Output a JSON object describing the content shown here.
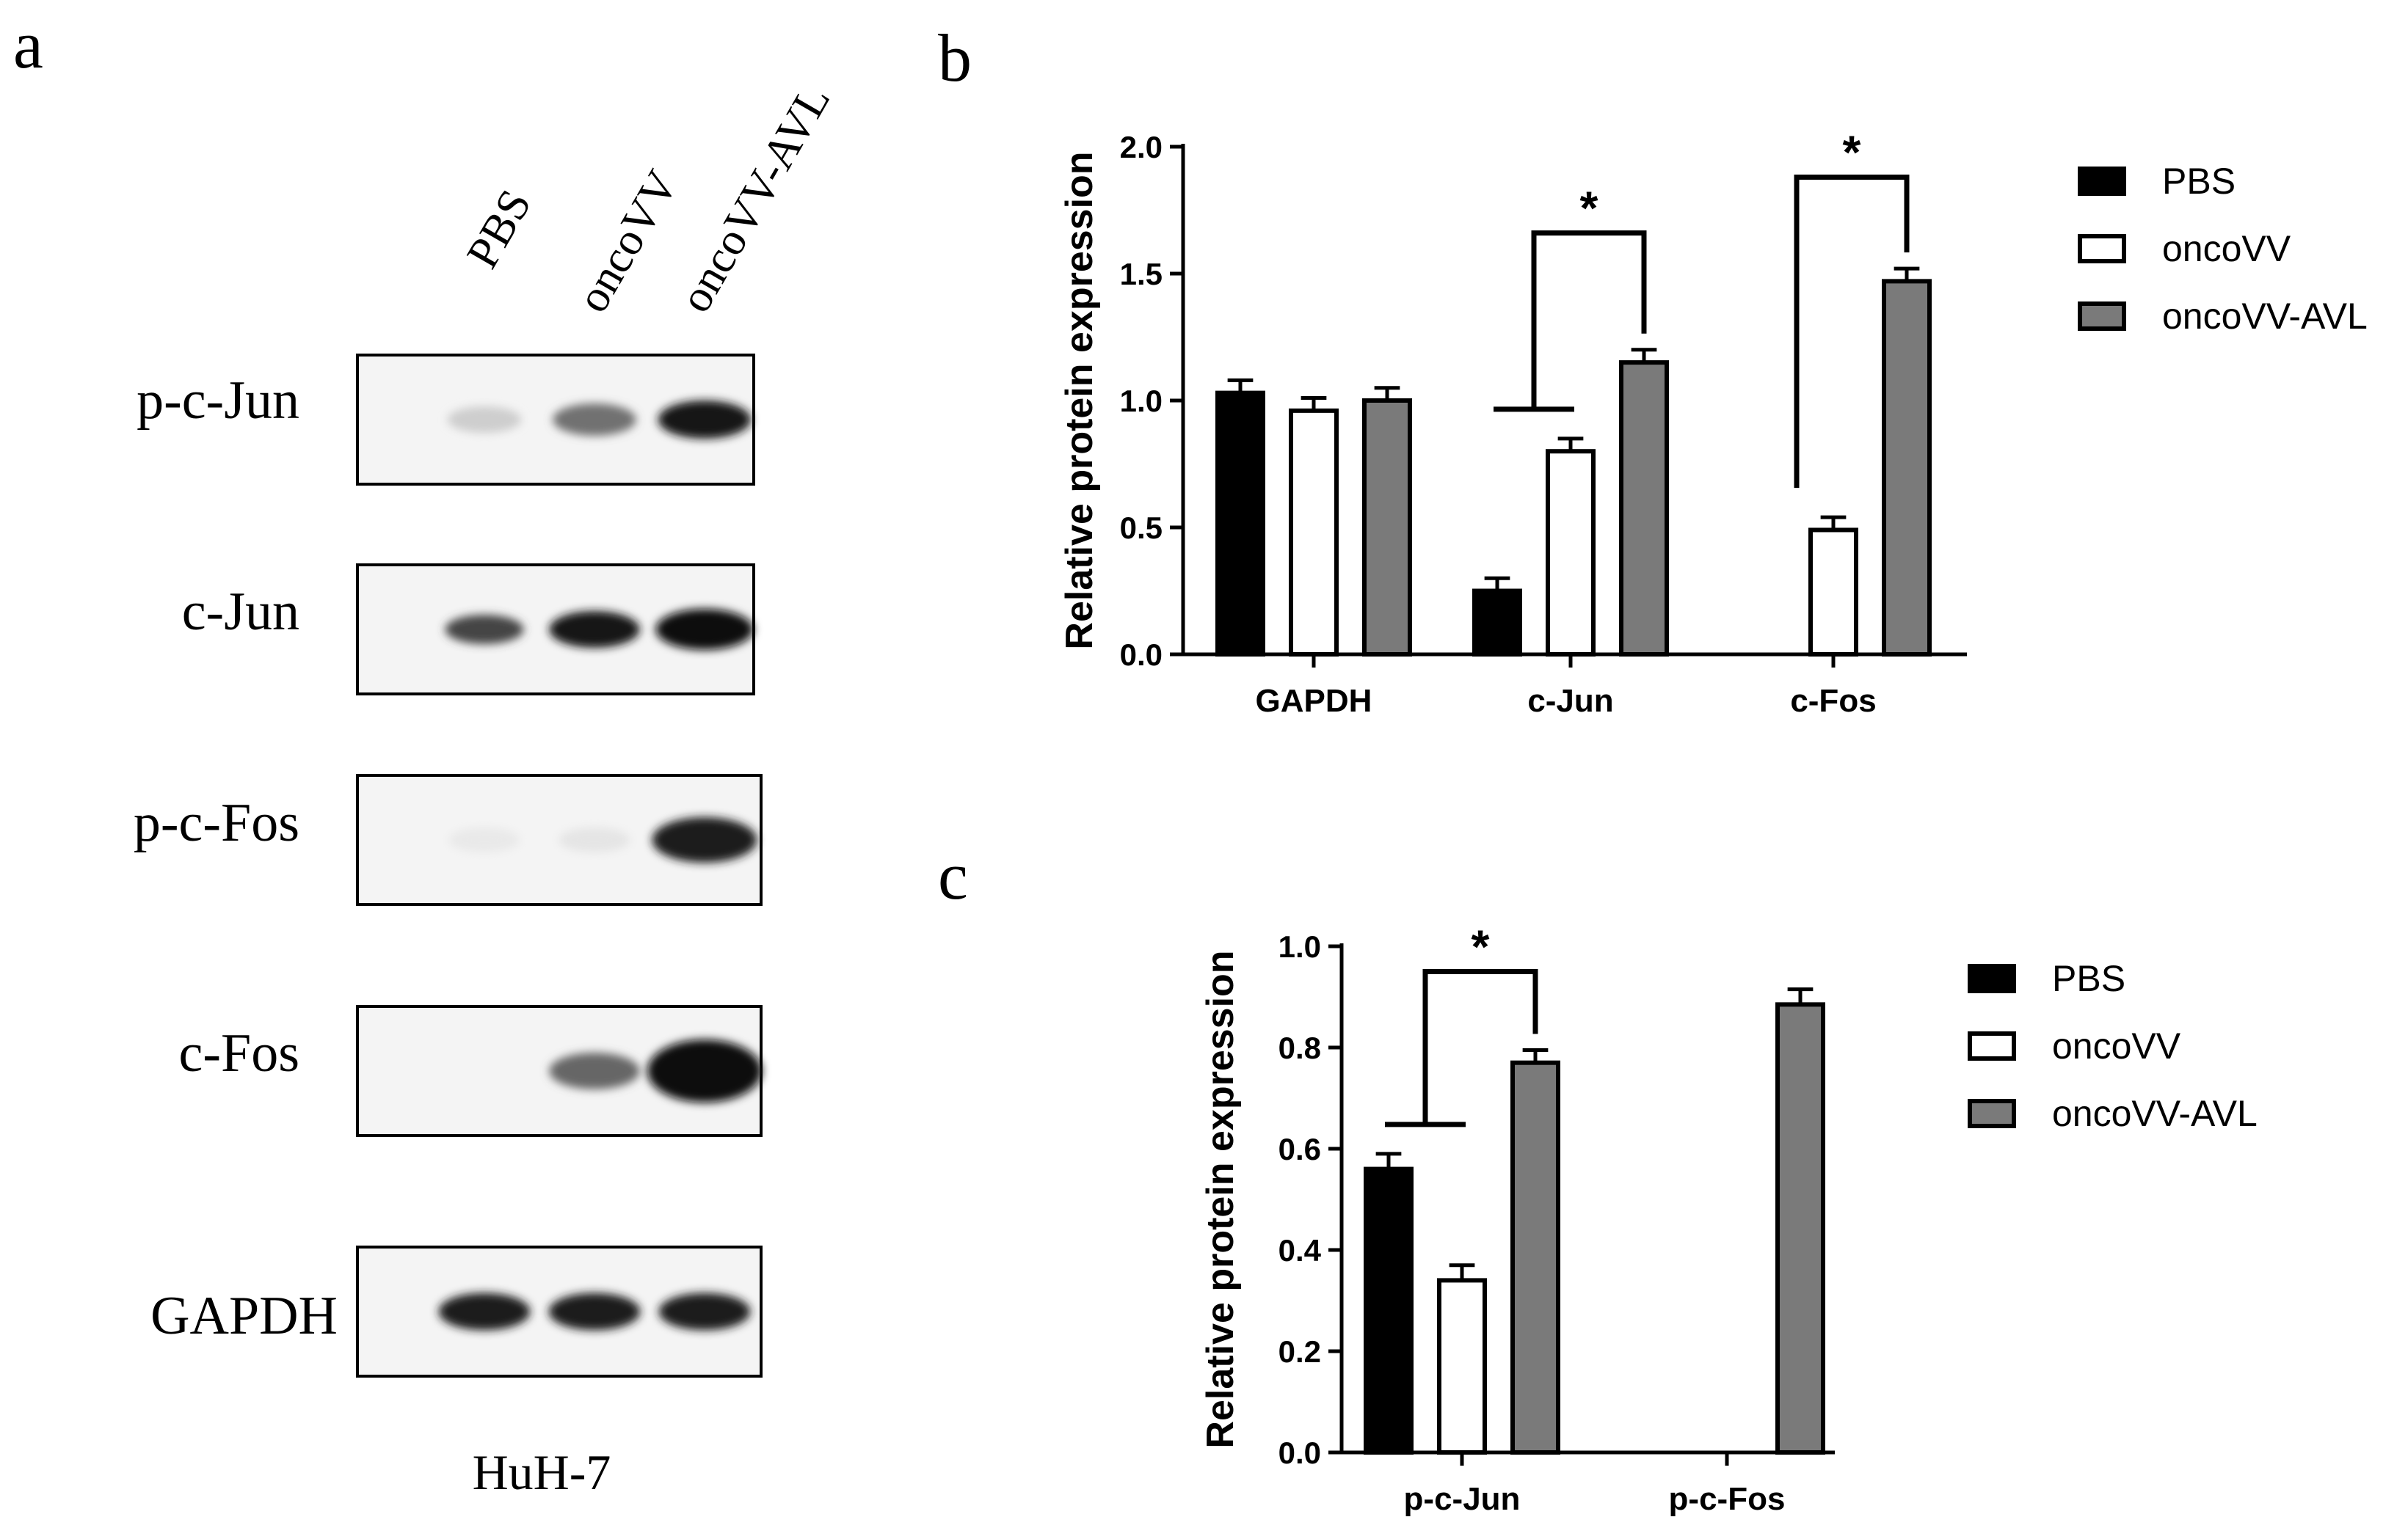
{
  "panel_letters": {
    "a": "a",
    "b": "b",
    "c": "c"
  },
  "western_blot": {
    "lanes": [
      "PBS",
      "oncoVV",
      "oncoVV-AVL"
    ],
    "cell_line": "HuH-7",
    "blots": [
      {
        "label": "p-c-Jun",
        "band_intensity": [
          0.15,
          0.55,
          0.95
        ],
        "band_size": [
          0.35,
          0.55,
          0.75
        ]
      },
      {
        "label": "c-Jun",
        "band_intensity": [
          0.75,
          0.95,
          1.0
        ],
        "band_size": [
          0.45,
          0.7,
          0.85
        ]
      },
      {
        "label": "p-c-Fos",
        "band_intensity": [
          0.03,
          0.05,
          0.92
        ],
        "band_size": [
          0.3,
          0.3,
          1.0
        ]
      },
      {
        "label": "c-Fos",
        "band_intensity": [
          0.0,
          0.6,
          1.0
        ],
        "band_size": [
          0.3,
          0.7,
          1.6
        ]
      },
      {
        "label": "GAPDH",
        "band_intensity": [
          0.92,
          0.92,
          0.92
        ],
        "band_size": [
          0.72,
          0.72,
          0.72
        ]
      }
    ]
  },
  "colors": {
    "PBS": "#000000",
    "oncoVV": "#ffffff",
    "oncoVV-AVL": "#7a7a7a",
    "axis": "#000000"
  },
  "chart_data": [
    {
      "id": "b",
      "type": "bar",
      "title": "",
      "xlabel": "",
      "ylabel": "Relative protein expression",
      "ylim": [
        0,
        2.0
      ],
      "yticks": [
        "0.0",
        "0.5",
        "1.0",
        "1.5",
        "2.0"
      ],
      "categories": [
        "GAPDH",
        "c-Jun",
        "c-Fos"
      ],
      "series": [
        {
          "name": "PBS",
          "values": [
            1.03,
            0.25,
            null
          ],
          "errors": [
            0.05,
            0.05,
            null
          ]
        },
        {
          "name": "oncoVV",
          "values": [
            0.96,
            0.8,
            0.49
          ],
          "errors": [
            0.05,
            0.05,
            0.05
          ]
        },
        {
          "name": "oncoVV-AVL",
          "values": [
            1.0,
            1.15,
            1.47
          ],
          "errors": [
            0.05,
            0.05,
            0.05
          ]
        }
      ],
      "legend": "top-right",
      "grid": false,
      "significance": [
        {
          "category": "c-Jun",
          "label": "*",
          "bracket_y": 1.66
        },
        {
          "category": "c-Fos",
          "label": "*",
          "bracket_y": 1.88
        }
      ]
    },
    {
      "id": "c",
      "type": "bar",
      "title": "",
      "xlabel": "",
      "ylabel": "Relative protein expression",
      "ylim": [
        0,
        1.0
      ],
      "yticks": [
        "0.0",
        "0.2",
        "0.4",
        "0.6",
        "0.8",
        "1.0"
      ],
      "categories": [
        "p-c-Jun",
        "p-c-Fos"
      ],
      "series": [
        {
          "name": "PBS",
          "values": [
            0.56,
            null
          ],
          "errors": [
            0.03,
            null
          ]
        },
        {
          "name": "oncoVV",
          "values": [
            0.34,
            null
          ],
          "errors": [
            0.03,
            null
          ]
        },
        {
          "name": "oncoVV-AVL",
          "values": [
            0.77,
            0.885
          ],
          "errors": [
            0.025,
            0.03
          ]
        }
      ],
      "legend": "top-right",
      "grid": false,
      "significance": [
        {
          "category": "p-c-Jun",
          "label": "*",
          "bracket_y": 0.95
        }
      ]
    }
  ]
}
